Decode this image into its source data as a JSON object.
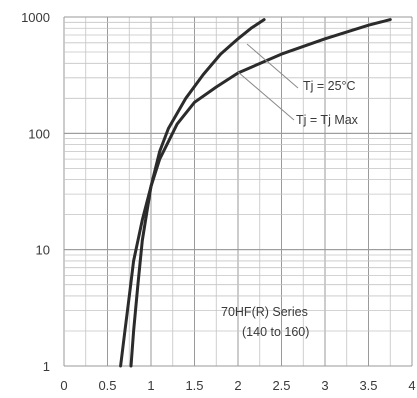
{
  "chart_data": {
    "type": "line",
    "title": "",
    "xlabel": "",
    "ylabel": "",
    "x_scale": "linear",
    "y_scale": "log",
    "xlim": [
      0,
      4
    ],
    "ylim": [
      1,
      1000
    ],
    "grid": true,
    "x_tick_labels": [
      "0",
      "0.5",
      "1",
      "1.5",
      "2",
      "2.5",
      "3",
      "3.5",
      "4"
    ],
    "x_ticks": [
      0,
      0.5,
      1,
      1.5,
      2,
      2.5,
      3,
      3.5,
      4
    ],
    "y_tick_labels": [
      "1",
      "10",
      "100",
      "1000"
    ],
    "y_ticks": [
      1,
      10,
      100,
      1000
    ],
    "series": [
      {
        "name": "Tj = 25°C",
        "x": [
          0.77,
          0.8,
          0.85,
          0.9,
          1.0,
          1.1,
          1.2,
          1.4,
          1.6,
          1.8,
          2.0,
          2.15,
          2.3
        ],
        "y": [
          1,
          2,
          5,
          12,
          35,
          70,
          110,
          200,
          320,
          480,
          650,
          800,
          950
        ]
      },
      {
        "name": "Tj = Tj Max",
        "x": [
          0.65,
          0.7,
          0.75,
          0.8,
          0.9,
          1.0,
          1.1,
          1.3,
          1.5,
          1.75,
          2.0,
          2.5,
          3.0,
          3.5,
          3.75
        ],
        "y": [
          1,
          2,
          4,
          8,
          18,
          35,
          60,
          120,
          185,
          250,
          330,
          480,
          650,
          850,
          950
        ]
      }
    ],
    "annotations": [
      "70HF(R) Series",
      "(140 to 160)"
    ]
  }
}
